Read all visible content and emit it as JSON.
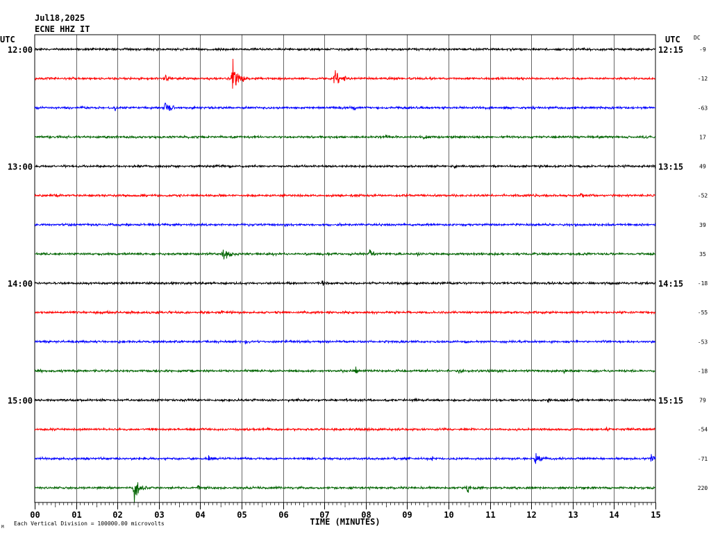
{
  "header": {
    "date": "Jul18,2025",
    "station": "ECNE HHZ IT",
    "left_tz": "UTC",
    "right_tz": "UTC",
    "dc_label": "DC"
  },
  "footer": {
    "xaxis_title": "TIME (MINUTES)",
    "scale_note": "Each Vertical Division = 100000.00 microvolts",
    "corner_mark": "M"
  },
  "chart_data": {
    "type": "line",
    "xlabel": "TIME (MINUTES)",
    "xlim": [
      0,
      15
    ],
    "x_ticks": [
      "00",
      "01",
      "02",
      "03",
      "04",
      "05",
      "06",
      "07",
      "08",
      "09",
      "10",
      "11",
      "12",
      "13",
      "14",
      "15"
    ],
    "left_time_labels": [
      {
        "row": 0,
        "label": "12:00"
      },
      {
        "row": 4,
        "label": "13:00"
      },
      {
        "row": 8,
        "label": "14:00"
      },
      {
        "row": 12,
        "label": "15:00"
      }
    ],
    "right_time_labels": [
      {
        "row": 0,
        "label": "12:15"
      },
      {
        "row": 4,
        "label": "13:15"
      },
      {
        "row": 8,
        "label": "14:15"
      },
      {
        "row": 12,
        "label": "15:15"
      }
    ],
    "trace_colors": [
      "#000000",
      "#ff0000",
      "#0000ff",
      "#006400"
    ],
    "dc_offsets": [
      -9,
      -12,
      -63,
      17,
      49,
      -52,
      39,
      35,
      -18,
      -55,
      -53,
      -18,
      79,
      -54,
      -71,
      220
    ],
    "events": [
      {
        "row": 1,
        "minute": 3.15,
        "amplitude": 6,
        "duration": 0.5
      },
      {
        "row": 1,
        "minute": 4.78,
        "amplitude": 22,
        "duration": 0.5
      },
      {
        "row": 1,
        "minute": 7.25,
        "amplitude": 11,
        "duration": 0.6
      },
      {
        "row": 2,
        "minute": 1.95,
        "amplitude": 5,
        "duration": 0.2
      },
      {
        "row": 2,
        "minute": 3.15,
        "amplitude": 12,
        "duration": 0.4
      },
      {
        "row": 2,
        "minute": 5.35,
        "amplitude": 4,
        "duration": 0.2
      },
      {
        "row": 2,
        "minute": 7.7,
        "amplitude": 4,
        "duration": 0.4
      },
      {
        "row": 3,
        "minute": 8.5,
        "amplitude": 4,
        "duration": 0.3
      },
      {
        "row": 3,
        "minute": 9.4,
        "amplitude": 4,
        "duration": 0.3
      },
      {
        "row": 4,
        "minute": 10.15,
        "amplitude": 4,
        "duration": 0.3
      },
      {
        "row": 5,
        "minute": 13.2,
        "amplitude": 4,
        "duration": 0.2
      },
      {
        "row": 6,
        "minute": 4.35,
        "amplitude": 4,
        "duration": 0.3
      },
      {
        "row": 7,
        "minute": 4.55,
        "amplitude": 11,
        "duration": 0.5
      },
      {
        "row": 7,
        "minute": 8.1,
        "amplitude": 7,
        "duration": 0.4
      },
      {
        "row": 7,
        "minute": 9.25,
        "amplitude": 4,
        "duration": 0.3
      },
      {
        "row": 8,
        "minute": 6.95,
        "amplitude": 4,
        "duration": 0.3
      },
      {
        "row": 8,
        "minute": 9.0,
        "amplitude": 3,
        "duration": 0.3
      },
      {
        "row": 9,
        "minute": 4.5,
        "amplitude": 4,
        "duration": 0.3
      },
      {
        "row": 10,
        "minute": 5.1,
        "amplitude": 5,
        "duration": 0.3
      },
      {
        "row": 11,
        "minute": 7.75,
        "amplitude": 6,
        "duration": 0.3
      },
      {
        "row": 11,
        "minute": 10.25,
        "amplitude": 5,
        "duration": 0.3
      },
      {
        "row": 11,
        "minute": 12.8,
        "amplitude": 4,
        "duration": 0.3
      },
      {
        "row": 12,
        "minute": 12.4,
        "amplitude": 4,
        "duration": 0.2
      },
      {
        "row": 13,
        "minute": 13.8,
        "amplitude": 4,
        "duration": 0.4
      },
      {
        "row": 14,
        "minute": 4.2,
        "amplitude": 4,
        "duration": 0.3
      },
      {
        "row": 14,
        "minute": 9.6,
        "amplitude": 4,
        "duration": 0.3
      },
      {
        "row": 14,
        "minute": 12.1,
        "amplitude": 9,
        "duration": 0.5
      },
      {
        "row": 14,
        "minute": 14.92,
        "amplitude": 14,
        "duration": 0.15
      },
      {
        "row": 15,
        "minute": 2.4,
        "amplitude": 18,
        "duration": 0.5
      },
      {
        "row": 15,
        "minute": 3.95,
        "amplitude": 6,
        "duration": 0.2
      },
      {
        "row": 15,
        "minute": 10.45,
        "amplitude": 7,
        "duration": 0.3
      }
    ]
  }
}
